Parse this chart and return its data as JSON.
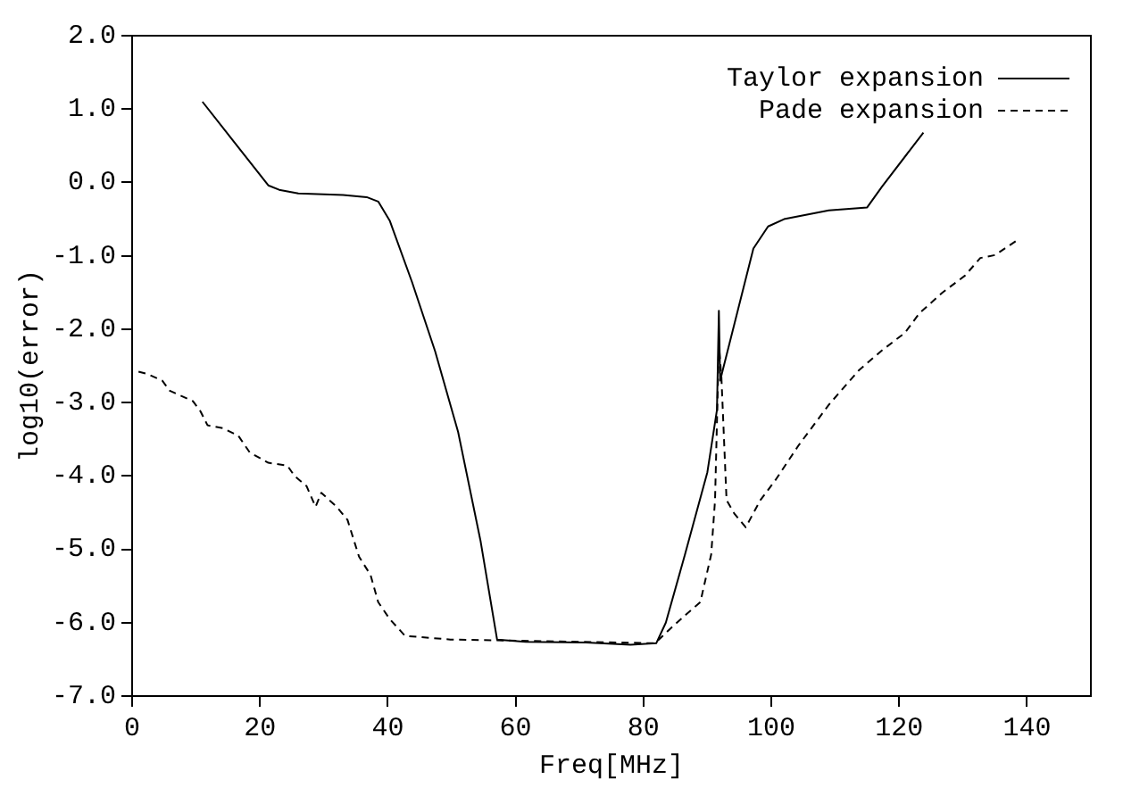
{
  "chart_data": {
    "type": "line",
    "xlabel": "Freq[MHz]",
    "ylabel": "log10(error)",
    "xlim": [
      0,
      150
    ],
    "xticks": [
      0,
      20,
      40,
      60,
      80,
      100,
      120,
      140
    ],
    "ylim": [
      -7,
      2
    ],
    "yticks": [
      {
        "value": 2,
        "label": "2.0"
      },
      {
        "value": 1,
        "label": "1.0"
      },
      {
        "value": 0,
        "label": "0.0"
      },
      {
        "value": -1,
        "label": "-1.0"
      },
      {
        "value": -2,
        "label": "-2.0"
      },
      {
        "value": -3,
        "label": "-3.0"
      },
      {
        "value": -4,
        "label": "-4.0"
      },
      {
        "value": -5,
        "label": "-5.0"
      },
      {
        "value": -6,
        "label": "-6.0"
      },
      {
        "value": -7,
        "label": "-7.0"
      }
    ],
    "grid": false,
    "legend": "top right",
    "marker": "none",
    "series": [
      {
        "name": "Taylor expansion",
        "color": "#000000",
        "line_style": "solid",
        "x": [
          11,
          21.3,
          23,
          26,
          33,
          36.7,
          38.5,
          40.3,
          43.8,
          47.4,
          51,
          54.5,
          57.1,
          61.6,
          71,
          78,
          82,
          83.5,
          86.5,
          90,
          91.5,
          91.8,
          92,
          92.4,
          94.8,
          97.2,
          99.5,
          102,
          109,
          115,
          117.3,
          123.8
        ],
        "values": [
          1.1,
          -0.04,
          -0.1,
          -0.15,
          -0.17,
          -0.2,
          -0.26,
          -0.52,
          -1.36,
          -2.3,
          -3.4,
          -4.88,
          -6.23,
          -6.26,
          -6.27,
          -6.3,
          -6.28,
          -6,
          -5.07,
          -3.95,
          -3.1,
          -1.75,
          -2.7,
          -2.56,
          -1.73,
          -0.9,
          -0.6,
          -0.5,
          -0.38,
          -0.34,
          -0.06,
          0.68
        ]
      },
      {
        "name": "Pade expansion",
        "color": "#000000",
        "line_style": "dashed",
        "x": [
          1,
          2.4,
          4.7,
          5.9,
          9.5,
          10.7,
          11.8,
          14.2,
          16.6,
          18.4,
          21.3,
          24.3,
          25.4,
          27.3,
          28.7,
          29.6,
          32,
          33.7,
          35.5,
          37.3,
          38.5,
          40.3,
          42.7,
          49.8,
          56.9,
          81.8,
          84.1,
          86.5,
          88.9,
          90.6,
          91.2,
          91.8,
          92.2,
          93,
          94.2,
          96,
          98.3,
          100.7,
          104.3,
          109,
          113.7,
          117.3,
          120.9,
          123.2,
          126.8,
          130.3,
          132.7,
          135,
          138.6
        ],
        "values": [
          -2.58,
          -2.61,
          -2.7,
          -2.84,
          -2.98,
          -3.12,
          -3.31,
          -3.35,
          -3.45,
          -3.68,
          -3.82,
          -3.86,
          -4,
          -4.14,
          -4.42,
          -4.23,
          -4.42,
          -4.6,
          -5.1,
          -5.35,
          -5.72,
          -5.95,
          -6.18,
          -6.23,
          -6.24,
          -6.28,
          -6.09,
          -5.9,
          -5.72,
          -5.07,
          -4.33,
          -2.2,
          -2.66,
          -4.33,
          -4.51,
          -4.7,
          -4.33,
          -4.05,
          -3.58,
          -3.03,
          -2.56,
          -2.29,
          -2.05,
          -1.78,
          -1.5,
          -1.27,
          -1.03,
          -0.99,
          -0.78
        ]
      }
    ]
  }
}
